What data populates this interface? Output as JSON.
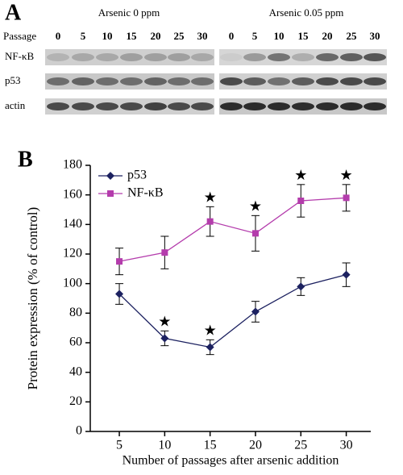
{
  "panel_a": {
    "label": "A",
    "groups": [
      "Arsenic 0 ppm",
      "Arsenic 0.05 ppm"
    ],
    "passage_label": "Passage",
    "passages": [
      "0",
      "5",
      "10",
      "15",
      "20",
      "25",
      "30"
    ],
    "rows": [
      "NF-κB",
      "p53",
      "actin"
    ]
  },
  "chart_data": {
    "type": "line",
    "panel_label": "B",
    "x_label": "Number of passages after arsenic addition",
    "y_label": "Protein expression (% of control)",
    "x": [
      5,
      10,
      15,
      20,
      25,
      30
    ],
    "xlim": [
      1.8,
      32.7
    ],
    "xticks": [
      5,
      10,
      15,
      20,
      25,
      30
    ],
    "ylim": [
      0,
      180
    ],
    "yticks": [
      0,
      20,
      40,
      60,
      80,
      100,
      120,
      140,
      160,
      180
    ],
    "star_label": "★",
    "series": [
      {
        "name": "p53",
        "color": "#1c2160",
        "marker": "diamond",
        "values": [
          93,
          63,
          57,
          81,
          98,
          106
        ],
        "errors": [
          7,
          5,
          5,
          7,
          6,
          8
        ],
        "significant": [
          false,
          true,
          true,
          false,
          false,
          false
        ]
      },
      {
        "name": "NF-κB",
        "color": "#b43cac",
        "marker": "square",
        "values": [
          115,
          121,
          142,
          134,
          156,
          158
        ],
        "errors": [
          9,
          11,
          10,
          12,
          11,
          9
        ],
        "significant": [
          false,
          false,
          true,
          true,
          true,
          true
        ]
      }
    ]
  }
}
